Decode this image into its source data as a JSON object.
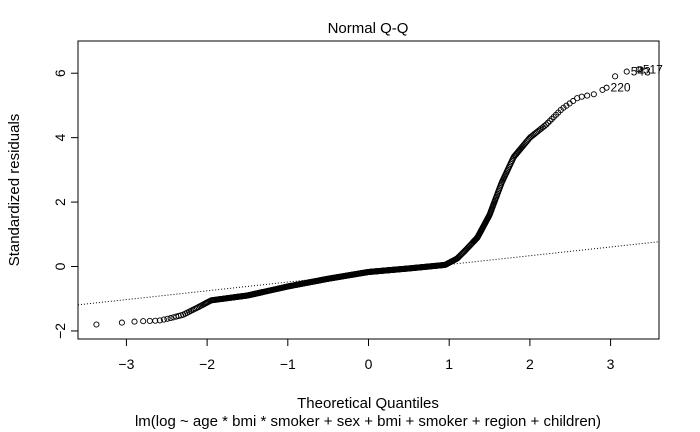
{
  "chart_data": {
    "type": "scatter",
    "title": "Normal Q-Q",
    "xlabel": "Theoretical Quantiles",
    "ylabel": "Standardized residuals",
    "subtitle": "lm(log ~ age * bmi * smoker + sex + bmi + smoker + region + children)",
    "xlim": [
      -3.6,
      3.6
    ],
    "ylim": [
      -2.25,
      7.0
    ],
    "x_ticks": [
      -3,
      -2,
      -1,
      0,
      1,
      2,
      3
    ],
    "y_ticks": [
      -2,
      0,
      2,
      4,
      6
    ],
    "grid": false,
    "reference_line": {
      "style": "dotted",
      "points": [
        [
          -3.6,
          -1.19
        ],
        [
          3.6,
          0.77
        ]
      ]
    },
    "n_points": 1338,
    "curve_anchors": [
      [
        -3.35,
        -1.8
      ],
      [
        -3.1,
        -1.75
      ],
      [
        -2.85,
        -1.7
      ],
      [
        -2.6,
        -1.68
      ],
      [
        -2.45,
        -1.6
      ],
      [
        -2.3,
        -1.5
      ],
      [
        -2.1,
        -1.25
      ],
      [
        -1.95,
        -1.05
      ],
      [
        -1.5,
        -0.9
      ],
      [
        -1.0,
        -0.62
      ],
      [
        -0.5,
        -0.38
      ],
      [
        0.0,
        -0.17
      ],
      [
        0.5,
        -0.06
      ],
      [
        0.95,
        0.05
      ],
      [
        1.1,
        0.25
      ],
      [
        1.2,
        0.5
      ],
      [
        1.35,
        0.9
      ],
      [
        1.5,
        1.6
      ],
      [
        1.65,
        2.6
      ],
      [
        1.8,
        3.4
      ],
      [
        2.0,
        4.0
      ],
      [
        2.2,
        4.4
      ],
      [
        2.4,
        4.9
      ],
      [
        2.6,
        5.25
      ],
      [
        2.8,
        5.35
      ],
      [
        2.95,
        5.55
      ],
      [
        3.1,
        6.05
      ],
      [
        3.2,
        6.1
      ],
      [
        3.35,
        6.12
      ]
    ],
    "labeled_points": [
      {
        "label": "517",
        "x": 3.35,
        "y": 6.12
      },
      {
        "label": "543",
        "x": 3.2,
        "y": 6.05
      },
      {
        "label": "220",
        "x": 2.95,
        "y": 5.55
      }
    ]
  }
}
